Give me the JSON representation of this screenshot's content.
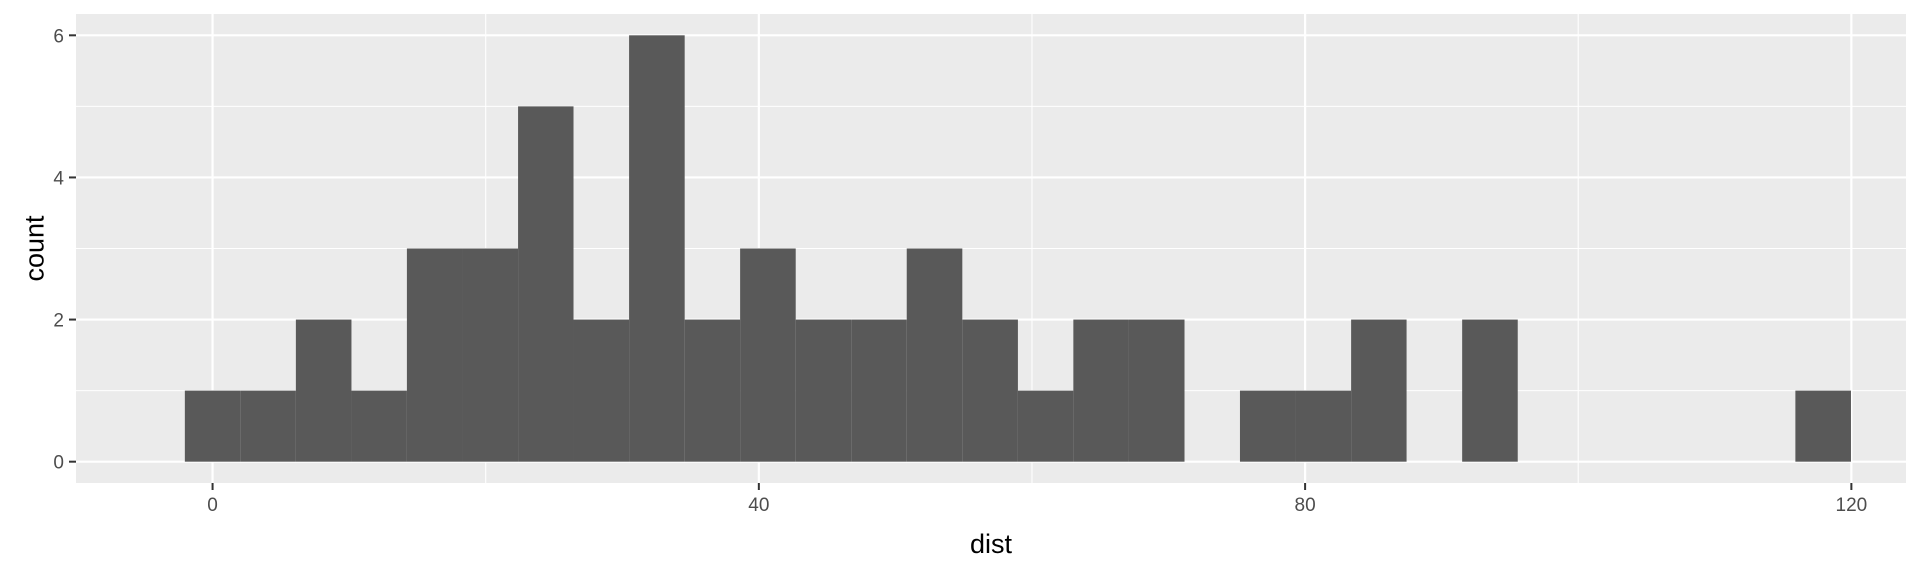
{
  "chart_data": {
    "type": "bar",
    "subtype": "histogram",
    "title": "",
    "xlabel": "dist",
    "ylabel": "count",
    "xlim": [
      -10,
      124
    ],
    "ylim": [
      -0.3,
      6.3
    ],
    "x_ticks": [
      0,
      40,
      80,
      120
    ],
    "y_ticks": [
      0,
      2,
      4,
      6
    ],
    "x_minor": [
      20,
      60,
      100
    ],
    "y_minor": [
      1,
      3,
      5
    ],
    "bin_width": 4.0667,
    "bins": [
      {
        "x0": -2.03,
        "x1": 2.03,
        "count": 1
      },
      {
        "x0": 2.03,
        "x1": 6.1,
        "count": 1
      },
      {
        "x0": 6.1,
        "x1": 10.17,
        "count": 2
      },
      {
        "x0": 10.17,
        "x1": 14.23,
        "count": 1
      },
      {
        "x0": 14.23,
        "x1": 18.3,
        "count": 3
      },
      {
        "x0": 18.3,
        "x1": 22.37,
        "count": 3
      },
      {
        "x0": 22.37,
        "x1": 26.43,
        "count": 5
      },
      {
        "x0": 26.43,
        "x1": 30.5,
        "count": 2
      },
      {
        "x0": 30.5,
        "x1": 34.57,
        "count": 6
      },
      {
        "x0": 34.57,
        "x1": 38.63,
        "count": 2
      },
      {
        "x0": 38.63,
        "x1": 42.7,
        "count": 3
      },
      {
        "x0": 42.7,
        "x1": 46.77,
        "count": 2
      },
      {
        "x0": 46.77,
        "x1": 50.83,
        "count": 2
      },
      {
        "x0": 50.83,
        "x1": 54.9,
        "count": 3
      },
      {
        "x0": 54.9,
        "x1": 58.97,
        "count": 2
      },
      {
        "x0": 58.97,
        "x1": 63.03,
        "count": 1
      },
      {
        "x0": 63.03,
        "x1": 67.1,
        "count": 2
      },
      {
        "x0": 67.1,
        "x1": 71.17,
        "count": 2
      },
      {
        "x0": 75.23,
        "x1": 79.3,
        "count": 1
      },
      {
        "x0": 79.3,
        "x1": 83.37,
        "count": 1
      },
      {
        "x0": 83.37,
        "x1": 87.43,
        "count": 2
      },
      {
        "x0": 91.5,
        "x1": 95.57,
        "count": 2
      },
      {
        "x0": 115.9,
        "x1": 119.97,
        "count": 1
      }
    ],
    "grid": true,
    "legend": "none",
    "colors": {
      "panel_background": "#ebebeb",
      "grid": "#ffffff",
      "bar_fill": "#595959",
      "tick_text": "#4d4d4d",
      "axis_title": "#000000"
    }
  }
}
